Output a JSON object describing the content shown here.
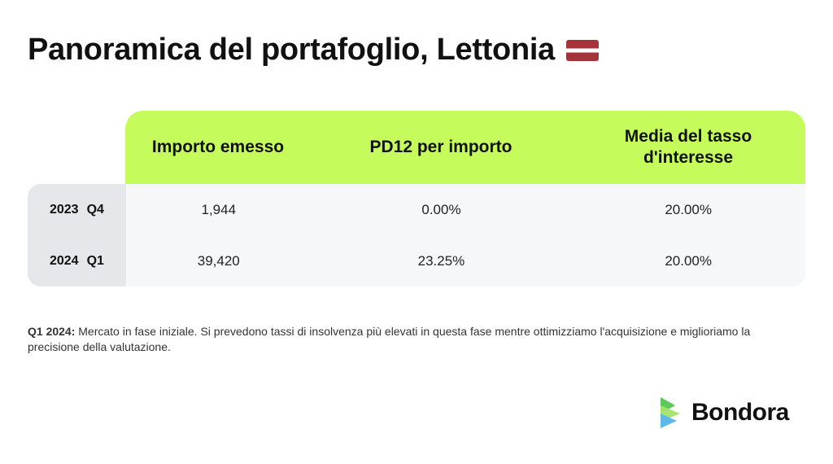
{
  "title": "Panoramica del portafoglio, Lettonia",
  "flag_icon": "latvia-flag-icon",
  "table": {
    "headers": [
      "Importo emesso",
      "PD12 per importo",
      "Media del tasso d'interesse"
    ],
    "rows": [
      {
        "year": "2023",
        "quarter": "Q4",
        "values": [
          "1,944",
          "0.00%",
          "20.00%"
        ]
      },
      {
        "year": "2024",
        "quarter": "Q1",
        "values": [
          "39,420",
          "23.25%",
          "20.00%"
        ]
      }
    ]
  },
  "note": {
    "label": "Q1 2024:",
    "text": " Mercato in fase iniziale. Si prevedono tassi di insolvenza più elevati in questa fase mentre ottimizziamo l'acquisizione e miglioriamo la precisione della valutazione."
  },
  "logo": {
    "text": "Bondora",
    "icon": "bondora-logo-icon"
  },
  "colors": {
    "header_green": "#c5fb5b",
    "label_gray": "#e5e7ea",
    "row_bg": "#f6f7f9",
    "flag_red": "#a4343a"
  }
}
